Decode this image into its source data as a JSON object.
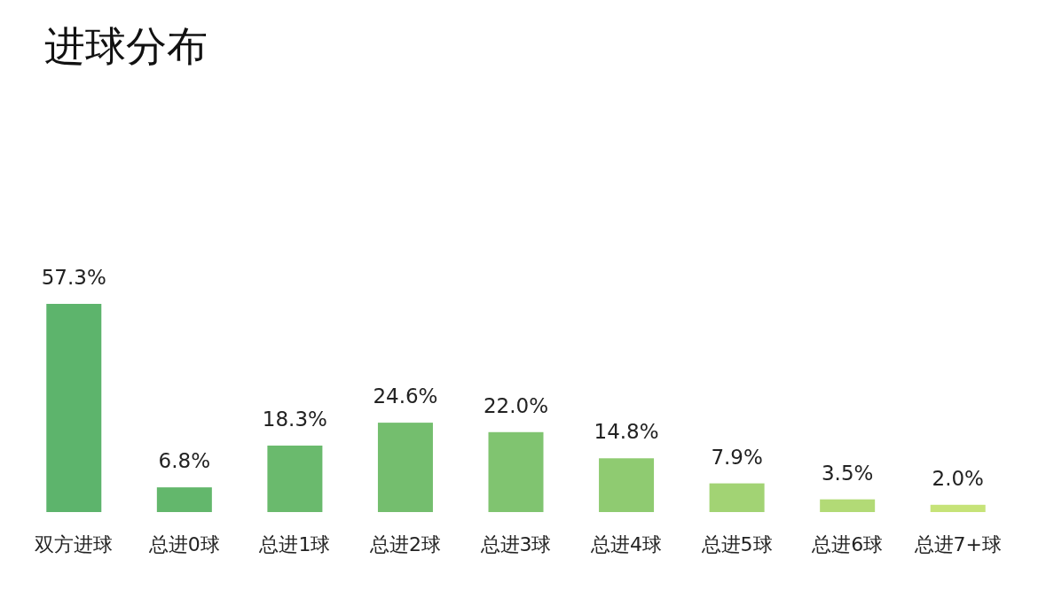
{
  "chart_data": {
    "type": "bar",
    "title": "进球分布",
    "categories": [
      "双方进球",
      "总进0球",
      "总进1球",
      "总进2球",
      "总进3球",
      "总进4球",
      "总进5球",
      "总进6球",
      "总进7+球"
    ],
    "values": [
      57.3,
      6.8,
      18.3,
      24.6,
      22.0,
      14.8,
      7.9,
      3.5,
      2.0
    ],
    "value_labels": [
      "57.3%",
      "6.8%",
      "18.3%",
      "24.6%",
      "22.0%",
      "14.8%",
      "7.9%",
      "3.5%",
      "2.0%"
    ],
    "colors": [
      "#5db46c",
      "#63b76c",
      "#6aba6d",
      "#74be6e",
      "#80c470",
      "#8fcb71",
      "#a2d374",
      "#b2da76",
      "#c6e378"
    ]
  }
}
